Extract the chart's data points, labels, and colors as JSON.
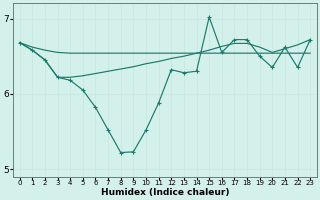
{
  "xlabel": "Humidex (Indice chaleur)",
  "bg_color": "#d4f0ea",
  "line_color": "#1a7a6e",
  "grid_color": "#c8e8e0",
  "x": [
    0,
    1,
    2,
    3,
    4,
    5,
    6,
    7,
    8,
    9,
    10,
    11,
    12,
    13,
    14,
    15,
    16,
    17,
    18,
    19,
    20,
    21,
    22,
    23
  ],
  "series1_marked": [
    6.68,
    6.58,
    6.45,
    6.22,
    6.18,
    6.05,
    5.82,
    5.52,
    5.22,
    5.23,
    5.52,
    5.88,
    6.32,
    6.28,
    6.3,
    7.02,
    6.55,
    6.72,
    6.72,
    6.5,
    6.35,
    6.62,
    6.35,
    6.72
  ],
  "series2_flat": [
    6.68,
    6.62,
    6.58,
    6.55,
    6.54,
    6.54,
    6.54,
    6.54,
    6.54,
    6.54,
    6.54,
    6.54,
    6.54,
    6.54,
    6.54,
    6.54,
    6.54,
    6.54,
    6.54,
    6.54,
    6.54,
    6.54,
    6.54,
    6.54
  ],
  "series3_rising": [
    6.68,
    6.58,
    6.45,
    6.22,
    6.22,
    6.24,
    6.27,
    6.3,
    6.33,
    6.36,
    6.4,
    6.43,
    6.47,
    6.5,
    6.54,
    6.58,
    6.63,
    6.67,
    6.67,
    6.62,
    6.55,
    6.6,
    6.65,
    6.72
  ],
  "ylim": [
    4.9,
    7.2
  ],
  "yticks": [
    5,
    6,
    7
  ],
  "xlim": [
    -0.5,
    23.5
  ]
}
